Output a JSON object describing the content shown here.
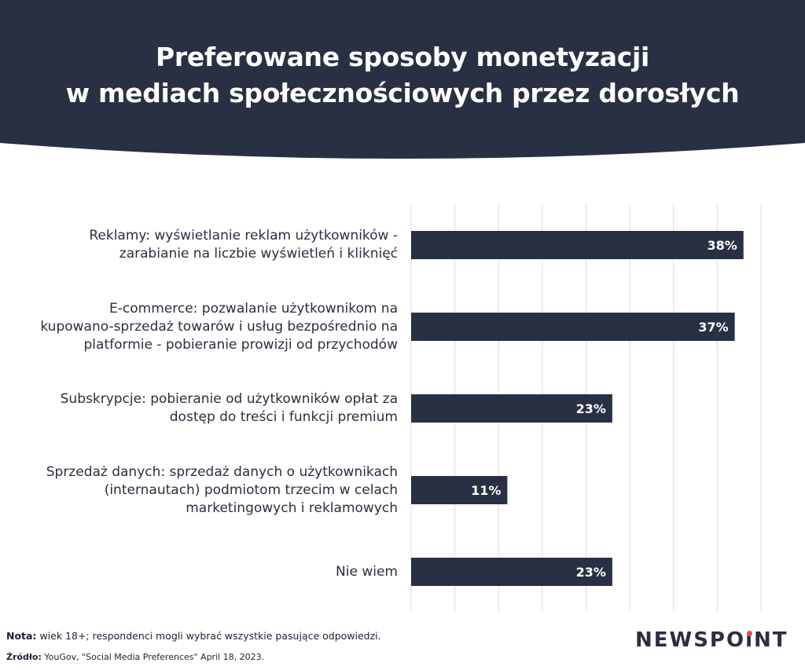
{
  "header": {
    "title_line1": "Preferowane sposoby monetyzacji",
    "title_line2": "w mediach społecznościowych przez dorosłych",
    "background_color": "#2a3043"
  },
  "chart_data": {
    "type": "bar",
    "orientation": "horizontal",
    "title": "Preferowane sposoby monetyzacji w mediach społecznościowych przez dorosłych",
    "categories": [
      [
        "Reklamy: wyświetlanie reklam użytkowników -",
        "zarabianie na liczbie wyświetleń i kliknięć"
      ],
      [
        "E-commerce: pozwalanie użytkownikom na",
        "kupowano-sprzedaż towarów i usług bezpośrednio na",
        "platformie - pobieranie prowizji od przychodów"
      ],
      [
        "Subskrypcje: pobieranie od użytkowników opłat za",
        "dostęp do treści i funkcji premium"
      ],
      [
        "Sprzedaż danych: sprzedaż danych o użytkownikach",
        "(internautach) podmiotom trzecim w celach",
        "marketingowych i reklamowych"
      ],
      [
        "Nie wiem"
      ]
    ],
    "values": [
      38,
      37,
      23,
      11,
      23
    ],
    "value_labels": [
      "38%",
      "37%",
      "23%",
      "11%",
      "23%"
    ],
    "xlim": [
      0,
      40
    ],
    "grid": true,
    "bar_color": "#2a3043",
    "label_color": "#ffffff"
  },
  "footer": {
    "nota_label": "Nota:",
    "nota_text": "wiek 18+; respondenci mogli wybrać wszystkie pasujące odpowiedzi.",
    "source_label": "Źródło:",
    "source_text": "YouGov, \"Social Media Preferences\" April 18, 2023."
  },
  "logo": {
    "part1": "NEWSPO",
    "dot_letter": "ı",
    "part2": "NT",
    "accent_color": "#e94e3c"
  }
}
